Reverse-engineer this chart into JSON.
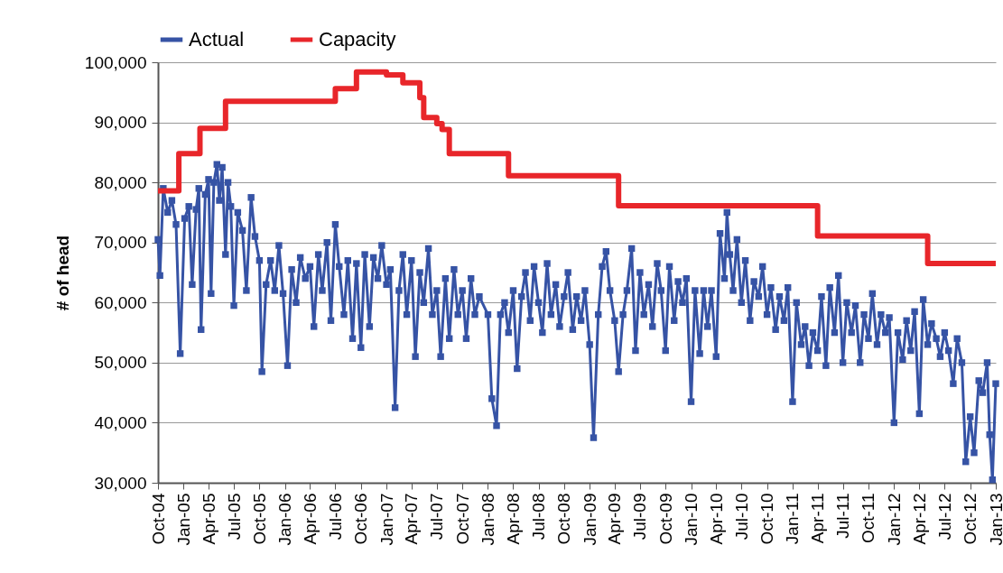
{
  "chart_data": {
    "type": "line",
    "ylabel": "# of head",
    "legend": "top",
    "grid": "y",
    "line_style": "solid",
    "xlim": [
      "2004-10",
      "2013-01"
    ],
    "xticks": [
      {
        "value": "2004-10",
        "label": "Oct-04"
      },
      {
        "value": "2005-01",
        "label": "Jan-05"
      },
      {
        "value": "2005-04",
        "label": "Apr-05"
      },
      {
        "value": "2005-07",
        "label": "Jul-05"
      },
      {
        "value": "2005-10",
        "label": "Oct-05"
      },
      {
        "value": "2006-01",
        "label": "Jan-06"
      },
      {
        "value": "2006-04",
        "label": "Apr-06"
      },
      {
        "value": "2006-07",
        "label": "Jul-06"
      },
      {
        "value": "2006-10",
        "label": "Oct-06"
      },
      {
        "value": "2007-01",
        "label": "Jan-07"
      },
      {
        "value": "2007-04",
        "label": "Apr-07"
      },
      {
        "value": "2007-07",
        "label": "Jul-07"
      },
      {
        "value": "2007-10",
        "label": "Oct-07"
      },
      {
        "value": "2008-01",
        "label": "Jan-08"
      },
      {
        "value": "2008-04",
        "label": "Apr-08"
      },
      {
        "value": "2008-07",
        "label": "Jul-08"
      },
      {
        "value": "2008-10",
        "label": "Oct-08"
      },
      {
        "value": "2009-01",
        "label": "Jan-09"
      },
      {
        "value": "2009-04",
        "label": "Apr-09"
      },
      {
        "value": "2009-07",
        "label": "Jul-09"
      },
      {
        "value": "2009-10",
        "label": "Oct-09"
      },
      {
        "value": "2010-01",
        "label": "Jan-10"
      },
      {
        "value": "2010-04",
        "label": "Apr-10"
      },
      {
        "value": "2010-07",
        "label": "Jul-10"
      },
      {
        "value": "2010-10",
        "label": "Oct-10"
      },
      {
        "value": "2011-01",
        "label": "Jan-11"
      },
      {
        "value": "2011-04",
        "label": "Apr-11"
      },
      {
        "value": "2011-07",
        "label": "Jul-11"
      },
      {
        "value": "2011-10",
        "label": "Oct-11"
      },
      {
        "value": "2012-01",
        "label": "Jan-12"
      },
      {
        "value": "2012-04",
        "label": "Apr-12"
      },
      {
        "value": "2012-07",
        "label": "Jul-12"
      },
      {
        "value": "2012-10",
        "label": "Oct-12"
      },
      {
        "value": "2013-01",
        "label": "Jan-13"
      }
    ],
    "ylim": [
      30000,
      100000
    ],
    "yticks": [
      {
        "value": 30000,
        "label": "30,000"
      },
      {
        "value": 40000,
        "label": "40,000"
      },
      {
        "value": 50000,
        "label": "50,000"
      },
      {
        "value": 60000,
        "label": "60,000"
      },
      {
        "value": 70000,
        "label": "70,000"
      },
      {
        "value": 80000,
        "label": "80,000"
      },
      {
        "value": 90000,
        "label": "90,000"
      },
      {
        "value": 100000,
        "label": "100,000"
      }
    ],
    "series": [
      {
        "name": "Actual",
        "type": "line",
        "marker": "square",
        "color": "#3653a5",
        "x": [
          "2004-10-01",
          "2004-10-08",
          "2004-10-20",
          "2004-11-05",
          "2004-11-20",
          "2004-12-05",
          "2004-12-20",
          "2005-01-05",
          "2005-01-20",
          "2005-02-01",
          "2005-02-15",
          "2005-02-25",
          "2005-03-05",
          "2005-03-20",
          "2005-04-01",
          "2005-04-10",
          "2005-04-20",
          "2005-05-01",
          "2005-05-10",
          "2005-05-20",
          "2005-06-01",
          "2005-06-10",
          "2005-06-20",
          "2005-07-01",
          "2005-07-15",
          "2005-08-01",
          "2005-08-15",
          "2005-09-01",
          "2005-09-15",
          "2005-10-01",
          "2005-10-10",
          "2005-10-25",
          "2005-11-10",
          "2005-11-25",
          "2005-12-10",
          "2005-12-25",
          "2006-01-10",
          "2006-01-25",
          "2006-02-10",
          "2006-02-25",
          "2006-03-15",
          "2006-04-01",
          "2006-04-15",
          "2006-05-01",
          "2006-05-15",
          "2006-06-01",
          "2006-06-15",
          "2006-07-01",
          "2006-07-15",
          "2006-08-01",
          "2006-08-15",
          "2006-09-01",
          "2006-09-15",
          "2006-10-01",
          "2006-10-15",
          "2006-11-01",
          "2006-11-15",
          "2006-12-01",
          "2006-12-15",
          "2007-01-01",
          "2007-01-15",
          "2007-02-01",
          "2007-02-15",
          "2007-03-01",
          "2007-03-15",
          "2007-04-01",
          "2007-04-15",
          "2007-05-01",
          "2007-05-15",
          "2007-06-01",
          "2007-06-15",
          "2007-07-01",
          "2007-07-15",
          "2007-08-01",
          "2007-08-15",
          "2007-09-01",
          "2007-09-15",
          "2007-10-01",
          "2007-10-15",
          "2007-11-01",
          "2007-11-15",
          "2007-12-01",
          "2008-01-01",
          "2008-01-15",
          "2008-02-01",
          "2008-02-15",
          "2008-03-01",
          "2008-03-15",
          "2008-04-01",
          "2008-04-15",
          "2008-05-01",
          "2008-05-15",
          "2008-06-01",
          "2008-06-15",
          "2008-07-01",
          "2008-07-15",
          "2008-08-01",
          "2008-08-15",
          "2008-09-01",
          "2008-09-15",
          "2008-10-01",
          "2008-10-15",
          "2008-11-01",
          "2008-11-15",
          "2008-12-01",
          "2008-12-15",
          "2009-01-01",
          "2009-01-15",
          "2009-02-01",
          "2009-02-15",
          "2009-03-01",
          "2009-03-15",
          "2009-04-01",
          "2009-04-15",
          "2009-05-01",
          "2009-05-15",
          "2009-06-01",
          "2009-06-15",
          "2009-07-01",
          "2009-07-15",
          "2009-08-01",
          "2009-08-15",
          "2009-09-01",
          "2009-09-15",
          "2009-10-01",
          "2009-10-15",
          "2009-11-01",
          "2009-11-15",
          "2009-12-01",
          "2009-12-15",
          "2010-01-01",
          "2010-01-15",
          "2010-02-01",
          "2010-02-15",
          "2010-03-01",
          "2010-03-15",
          "2010-04-01",
          "2010-04-15",
          "2010-05-01",
          "2010-05-10",
          "2010-05-20",
          "2010-06-01",
          "2010-06-15",
          "2010-07-01",
          "2010-07-15",
          "2010-08-01",
          "2010-08-15",
          "2010-09-01",
          "2010-09-15",
          "2010-10-01",
          "2010-10-15",
          "2010-11-01",
          "2010-11-15",
          "2010-12-01",
          "2010-12-15",
          "2011-01-01",
          "2011-01-15",
          "2011-02-01",
          "2011-02-15",
          "2011-03-01",
          "2011-03-15",
          "2011-04-01",
          "2011-04-15",
          "2011-05-01",
          "2011-05-15",
          "2011-06-01",
          "2011-06-15",
          "2011-07-01",
          "2011-07-15",
          "2011-08-01",
          "2011-08-15",
          "2011-09-01",
          "2011-09-15",
          "2011-10-01",
          "2011-10-15",
          "2011-11-01",
          "2011-11-15",
          "2011-12-01",
          "2011-12-15",
          "2012-01-01",
          "2012-01-15",
          "2012-02-01",
          "2012-02-15",
          "2012-03-01",
          "2012-03-15",
          "2012-04-01",
          "2012-04-15",
          "2012-05-01",
          "2012-05-15",
          "2012-06-01",
          "2012-06-15",
          "2012-07-01",
          "2012-07-15",
          "2012-08-01",
          "2012-08-15",
          "2012-09-01",
          "2012-09-15",
          "2012-10-01",
          "2012-10-15",
          "2012-11-01",
          "2012-11-15",
          "2012-12-01",
          "2012-12-10",
          "2012-12-20",
          "2013-01-01"
        ],
        "values": [
          70500,
          64500,
          79000,
          75000,
          77000,
          73000,
          51500,
          74000,
          76000,
          63000,
          75500,
          79000,
          55500,
          78000,
          80500,
          61500,
          80000,
          83000,
          77000,
          82500,
          68000,
          80000,
          76000,
          59500,
          75000,
          72000,
          62000,
          77500,
          71000,
          67000,
          48500,
          63000,
          67000,
          62000,
          69500,
          61500,
          49500,
          65500,
          60000,
          67500,
          64000,
          66000,
          56000,
          68000,
          62000,
          70000,
          57000,
          73000,
          66000,
          58000,
          67000,
          54000,
          66500,
          52500,
          68000,
          56000,
          67500,
          64000,
          69500,
          63000,
          65500,
          42500,
          62000,
          68000,
          58000,
          67000,
          51000,
          65000,
          60000,
          69000,
          58000,
          62000,
          51000,
          64000,
          54000,
          65500,
          58000,
          62000,
          54000,
          64000,
          58000,
          61000,
          58000,
          44000,
          39500,
          58000,
          60000,
          55000,
          62000,
          49000,
          61000,
          65000,
          57000,
          66000,
          60000,
          55000,
          66500,
          58000,
          63000,
          56000,
          61000,
          65000,
          55500,
          61000,
          57000,
          62000,
          53000,
          37500,
          58000,
          66000,
          68500,
          62000,
          57000,
          48500,
          58000,
          62000,
          69000,
          52000,
          65000,
          58000,
          63000,
          56000,
          66500,
          62000,
          52000,
          66000,
          57000,
          63500,
          60000,
          64000,
          43500,
          62000,
          51500,
          62000,
          56000,
          62000,
          51000,
          71500,
          64000,
          75000,
          68000,
          62000,
          70500,
          60000,
          67000,
          57000,
          63500,
          61000,
          66000,
          58000,
          62500,
          55500,
          61000,
          57000,
          62500,
          43500,
          60000,
          53000,
          56000,
          49500,
          55000,
          52000,
          61000,
          49500,
          62500,
          55000,
          64500,
          50000,
          60000,
          55000,
          59500,
          50000,
          58000,
          54000,
          61500,
          53000,
          58000,
          55000,
          57500,
          40000,
          55000,
          50500,
          57000,
          52000,
          58500,
          41500,
          60500,
          53000,
          56500,
          54000,
          51000,
          55000,
          52000,
          46500,
          54000,
          50000,
          33500,
          41000,
          35000,
          47000,
          45000,
          50000,
          38000,
          30500,
          46500
        ]
      },
      {
        "name": "Capacity",
        "type": "step",
        "marker": "none",
        "color": "#e8262a",
        "x": [
          "2004-10-01",
          "2004-12-15",
          "2005-03-01",
          "2005-06-01",
          "2006-07-01",
          "2006-09-15",
          "2007-01-01",
          "2007-03-01",
          "2007-05-01",
          "2007-05-15",
          "2007-07-01",
          "2007-07-20",
          "2007-08-15",
          "2008-03-15",
          "2009-04-15",
          "2011-04-01",
          "2012-05-01",
          "2013-01-01"
        ],
        "values": [
          78600,
          84800,
          89000,
          93500,
          95600,
          98400,
          97900,
          96600,
          94100,
          90800,
          89800,
          88800,
          84800,
          81100,
          76100,
          71100,
          66500,
          66500
        ]
      }
    ]
  }
}
